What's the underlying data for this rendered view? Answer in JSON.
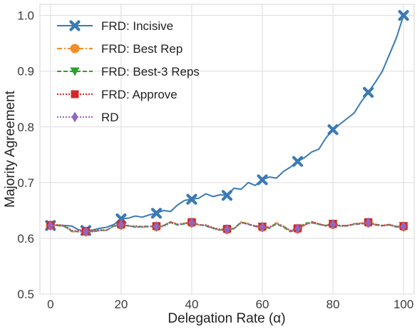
{
  "chart_data": {
    "type": "line",
    "title": "",
    "xlabel": "Delegation Rate (α)",
    "ylabel": "Majority Agreement",
    "xlim": [
      -3,
      103
    ],
    "ylim": [
      0.5,
      1.02
    ],
    "xticks": [
      0,
      20,
      40,
      60,
      80,
      100
    ],
    "yticks": [
      0.5,
      0.6,
      0.7,
      0.8,
      0.9,
      1.0
    ],
    "xtick_labels": [
      "0",
      "20",
      "40",
      "60",
      "80",
      "100"
    ],
    "ytick_labels": [
      "0.5",
      "0.6",
      "0.7",
      "0.8",
      "0.9",
      "1.0"
    ],
    "grid": true,
    "legend_position": "top-left",
    "series": [
      {
        "name": "FRD: Incisive",
        "color": "#3a7ab5",
        "marker": "x",
        "dash": "",
        "x": [
          0,
          2,
          4,
          6,
          8,
          10,
          12,
          14,
          16,
          18,
          20,
          22,
          24,
          26,
          28,
          30,
          32,
          34,
          36,
          38,
          40,
          42,
          44,
          46,
          48,
          50,
          52,
          54,
          56,
          58,
          60,
          62,
          64,
          66,
          68,
          70,
          72,
          74,
          76,
          78,
          80,
          82,
          84,
          86,
          88,
          90,
          92,
          94,
          96,
          98,
          100
        ],
        "y": [
          0.623,
          0.624,
          0.623,
          0.622,
          0.615,
          0.614,
          0.615,
          0.618,
          0.62,
          0.625,
          0.635,
          0.636,
          0.64,
          0.638,
          0.642,
          0.645,
          0.65,
          0.648,
          0.66,
          0.668,
          0.67,
          0.672,
          0.68,
          0.675,
          0.678,
          0.677,
          0.69,
          0.688,
          0.7,
          0.695,
          0.705,
          0.71,
          0.708,
          0.72,
          0.728,
          0.738,
          0.745,
          0.755,
          0.76,
          0.78,
          0.795,
          0.805,
          0.815,
          0.825,
          0.845,
          0.862,
          0.88,
          0.9,
          0.93,
          0.96,
          1.0
        ],
        "marker_x": [
          0,
          10,
          20,
          30,
          40,
          50,
          60,
          70,
          80,
          90,
          100
        ],
        "marker_y": [
          0.623,
          0.614,
          0.635,
          0.645,
          0.67,
          0.677,
          0.705,
          0.738,
          0.795,
          0.862,
          1.0
        ]
      },
      {
        "name": "FRD: Best Rep",
        "color": "#f28e2b",
        "marker": "circle",
        "dash": "7,3,2,3",
        "x": [
          0,
          2,
          4,
          6,
          8,
          10,
          12,
          14,
          16,
          18,
          20,
          22,
          24,
          26,
          28,
          30,
          32,
          34,
          36,
          38,
          40,
          42,
          44,
          46,
          48,
          50,
          52,
          54,
          56,
          58,
          60,
          62,
          64,
          66,
          68,
          70,
          72,
          74,
          76,
          78,
          80,
          82,
          84,
          86,
          88,
          90,
          92,
          94,
          96,
          98,
          100
        ],
        "y": [
          0.623,
          0.624,
          0.622,
          0.612,
          0.612,
          0.612,
          0.613,
          0.614,
          0.614,
          0.623,
          0.624,
          0.622,
          0.621,
          0.62,
          0.621,
          0.621,
          0.622,
          0.63,
          0.625,
          0.627,
          0.628,
          0.624,
          0.623,
          0.619,
          0.614,
          0.616,
          0.617,
          0.63,
          0.626,
          0.621,
          0.62,
          0.619,
          0.628,
          0.622,
          0.613,
          0.617,
          0.624,
          0.63,
          0.626,
          0.622,
          0.625,
          0.623,
          0.622,
          0.626,
          0.627,
          0.628,
          0.624,
          0.622,
          0.625,
          0.62,
          0.621
        ],
        "marker_x": [
          0,
          10,
          20,
          30,
          40,
          50,
          60,
          70,
          80,
          90,
          100
        ],
        "marker_y": [
          0.623,
          0.612,
          0.624,
          0.621,
          0.628,
          0.616,
          0.62,
          0.617,
          0.625,
          0.628,
          0.621
        ]
      },
      {
        "name": "FRD: Best-3 Reps",
        "color": "#2ca02c",
        "marker": "triangle-down",
        "dash": "6,3",
        "x": [
          0,
          2,
          4,
          6,
          8,
          10,
          12,
          14,
          16,
          18,
          20,
          22,
          24,
          26,
          28,
          30,
          32,
          34,
          36,
          38,
          40,
          42,
          44,
          46,
          48,
          50,
          52,
          54,
          56,
          58,
          60,
          62,
          64,
          66,
          68,
          70,
          72,
          74,
          76,
          78,
          80,
          82,
          84,
          86,
          88,
          90,
          92,
          94,
          96,
          98,
          100
        ],
        "y": [
          0.622,
          0.623,
          0.621,
          0.613,
          0.612,
          0.613,
          0.612,
          0.614,
          0.615,
          0.622,
          0.623,
          0.623,
          0.62,
          0.621,
          0.622,
          0.62,
          0.623,
          0.629,
          0.624,
          0.626,
          0.627,
          0.625,
          0.622,
          0.618,
          0.615,
          0.615,
          0.618,
          0.629,
          0.625,
          0.622,
          0.621,
          0.618,
          0.626,
          0.62,
          0.612,
          0.616,
          0.627,
          0.628,
          0.625,
          0.623,
          0.626,
          0.622,
          0.623,
          0.625,
          0.626,
          0.627,
          0.625,
          0.623,
          0.624,
          0.621,
          0.622
        ],
        "marker_x": [
          0,
          10,
          20,
          30,
          40,
          50,
          60,
          70,
          80,
          90,
          100
        ],
        "marker_y": [
          0.622,
          0.613,
          0.623,
          0.62,
          0.627,
          0.615,
          0.621,
          0.616,
          0.626,
          0.627,
          0.622
        ]
      },
      {
        "name": "FRD: Approve",
        "color": "#d62728",
        "marker": "square",
        "dash": "2,2",
        "x": [
          0,
          2,
          4,
          6,
          8,
          10,
          12,
          14,
          16,
          18,
          20,
          22,
          24,
          26,
          28,
          30,
          32,
          34,
          36,
          38,
          40,
          42,
          44,
          46,
          48,
          50,
          52,
          54,
          56,
          58,
          60,
          62,
          64,
          66,
          68,
          70,
          72,
          74,
          76,
          78,
          80,
          82,
          84,
          86,
          88,
          90,
          92,
          94,
          96,
          98,
          100
        ],
        "y": [
          0.624,
          0.624,
          0.623,
          0.614,
          0.613,
          0.613,
          0.613,
          0.615,
          0.615,
          0.622,
          0.625,
          0.622,
          0.622,
          0.621,
          0.621,
          0.622,
          0.622,
          0.629,
          0.625,
          0.627,
          0.629,
          0.624,
          0.624,
          0.619,
          0.616,
          0.617,
          0.617,
          0.628,
          0.626,
          0.622,
          0.621,
          0.62,
          0.627,
          0.621,
          0.614,
          0.618,
          0.624,
          0.629,
          0.626,
          0.623,
          0.626,
          0.623,
          0.623,
          0.626,
          0.627,
          0.629,
          0.625,
          0.623,
          0.625,
          0.621,
          0.622
        ],
        "marker_x": [
          0,
          10,
          20,
          30,
          40,
          50,
          60,
          70,
          80,
          90,
          100
        ],
        "marker_y": [
          0.624,
          0.613,
          0.625,
          0.622,
          0.629,
          0.617,
          0.621,
          0.618,
          0.626,
          0.629,
          0.622
        ]
      },
      {
        "name": "RD",
        "color": "#9467bd",
        "marker": "diamond",
        "dash": "2,2",
        "x": [
          0,
          2,
          4,
          6,
          8,
          10,
          12,
          14,
          16,
          18,
          20,
          22,
          24,
          26,
          28,
          30,
          32,
          34,
          36,
          38,
          40,
          42,
          44,
          46,
          48,
          50,
          52,
          54,
          56,
          58,
          60,
          62,
          64,
          66,
          68,
          70,
          72,
          74,
          76,
          78,
          80,
          82,
          84,
          86,
          88,
          90,
          92,
          94,
          96,
          98,
          100
        ],
        "y": [
          0.623,
          0.623,
          0.622,
          0.613,
          0.612,
          0.612,
          0.612,
          0.614,
          0.615,
          0.622,
          0.624,
          0.622,
          0.621,
          0.62,
          0.621,
          0.621,
          0.621,
          0.628,
          0.624,
          0.626,
          0.628,
          0.624,
          0.623,
          0.618,
          0.615,
          0.616,
          0.617,
          0.628,
          0.625,
          0.621,
          0.62,
          0.619,
          0.627,
          0.621,
          0.613,
          0.617,
          0.624,
          0.628,
          0.625,
          0.622,
          0.625,
          0.622,
          0.622,
          0.625,
          0.626,
          0.628,
          0.624,
          0.622,
          0.624,
          0.62,
          0.621
        ],
        "marker_x": [
          0,
          10,
          20,
          30,
          40,
          50,
          60,
          70,
          80,
          90,
          100
        ],
        "marker_y": [
          0.623,
          0.612,
          0.624,
          0.621,
          0.628,
          0.616,
          0.62,
          0.617,
          0.625,
          0.628,
          0.621
        ]
      }
    ]
  }
}
